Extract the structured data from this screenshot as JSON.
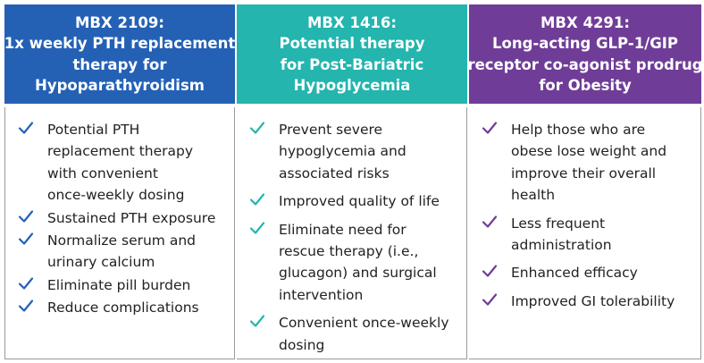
{
  "columns": [
    {
      "header_lines": [
        "MBX 2109:",
        "1x weekly PTH replacement",
        "therapy for",
        "Hypoparathyroidism"
      ],
      "header_color": "#2461b5",
      "check_color": "#2461b5",
      "items": [
        [
          "Potential PTH",
          "replacement therapy",
          "with convenient",
          "once-weekly dosing"
        ],
        [
          "Sustained PTH exposure"
        ],
        [
          "Normalize serum and",
          "urinary calcium"
        ],
        [
          "Eliminate pill burden"
        ],
        [
          "Reduce complications"
        ]
      ]
    },
    {
      "header_lines": [
        "MBX 1416:",
        "Potential therapy",
        "for Post-Bariatric",
        "Hypoglycemia"
      ],
      "header_color": "#23b5ae",
      "check_color": "#23b5ae",
      "items": [
        [
          "Prevent severe",
          "hypoglycemia and",
          "associated risks"
        ],
        [
          "Improved quality of life"
        ],
        [
          "Eliminate need for",
          "rescue therapy (i.e.,",
          "glucagon) and surgical",
          "intervention"
        ],
        [
          "Convenient once-weekly",
          "dosing"
        ]
      ]
    },
    {
      "header_lines": [
        "MBX 4291:",
        "Long-acting GLP-1/GIP",
        "receptor co-agonist prodrug",
        "for Obesity"
      ],
      "header_color": "#6f3d97",
      "check_color": "#6f3d97",
      "items": [
        [
          "Help those who are",
          "obese lose weight and",
          "improve their overall",
          "health"
        ],
        [
          "Less frequent",
          "administration"
        ],
        [
          "Enhanced efficacy"
        ],
        [
          "Improved GI tolerability"
        ]
      ]
    }
  ],
  "icons": {
    "bullet": "checkmark-icon"
  }
}
